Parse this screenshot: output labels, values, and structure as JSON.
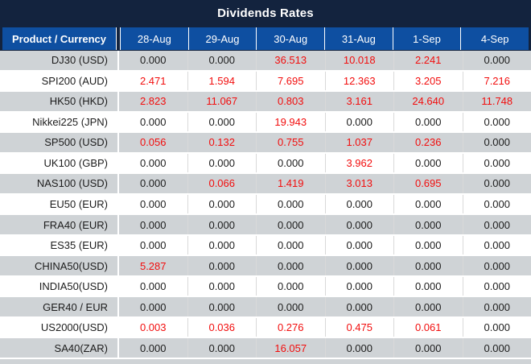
{
  "title": "Dividends Rates",
  "colors": {
    "title_bar_navy": "#13233e",
    "header_blue": "#0e4fa1",
    "row_gray": "#cfd3d6",
    "row_white": "#ffffff",
    "value_black": "#1c1c1c",
    "value_red": "#f20d0d"
  },
  "table": {
    "columns": [
      "Product / Currency",
      "28-Aug",
      "29-Aug",
      "30-Aug",
      "31-Aug",
      "1-Sep",
      "4-Sep"
    ],
    "rows": [
      {
        "product": "DJ30 (USD)",
        "values": [
          "0.000",
          "0.000",
          "36.513",
          "10.018",
          "2.241",
          "0.000"
        ],
        "red": [
          false,
          false,
          true,
          true,
          true,
          false
        ]
      },
      {
        "product": "SPI200 (AUD)",
        "values": [
          "2.471",
          "1.594",
          "7.695",
          "12.363",
          "3.205",
          "7.216"
        ],
        "red": [
          true,
          true,
          true,
          true,
          true,
          true
        ]
      },
      {
        "product": "HK50 (HKD)",
        "values": [
          "2.823",
          "11.067",
          "0.803",
          "3.161",
          "24.640",
          "11.748"
        ],
        "red": [
          true,
          true,
          true,
          true,
          true,
          true
        ]
      },
      {
        "product": "Nikkei225 (JPN)",
        "values": [
          "0.000",
          "0.000",
          "19.943",
          "0.000",
          "0.000",
          "0.000"
        ],
        "red": [
          false,
          false,
          true,
          false,
          false,
          false
        ]
      },
      {
        "product": "SP500 (USD)",
        "values": [
          "0.056",
          "0.132",
          "0.755",
          "1.037",
          "0.236",
          "0.000"
        ],
        "red": [
          true,
          true,
          true,
          true,
          true,
          false
        ]
      },
      {
        "product": "UK100 (GBP)",
        "values": [
          "0.000",
          "0.000",
          "0.000",
          "3.962",
          "0.000",
          "0.000"
        ],
        "red": [
          false,
          false,
          false,
          true,
          false,
          false
        ]
      },
      {
        "product": "NAS100 (USD)",
        "values": [
          "0.000",
          "0.066",
          "1.419",
          "3.013",
          "0.695",
          "0.000"
        ],
        "red": [
          false,
          true,
          true,
          true,
          true,
          false
        ]
      },
      {
        "product": "EU50 (EUR)",
        "values": [
          "0.000",
          "0.000",
          "0.000",
          "0.000",
          "0.000",
          "0.000"
        ],
        "red": [
          false,
          false,
          false,
          false,
          false,
          false
        ]
      },
      {
        "product": "FRA40 (EUR)",
        "values": [
          "0.000",
          "0.000",
          "0.000",
          "0.000",
          "0.000",
          "0.000"
        ],
        "red": [
          false,
          false,
          false,
          false,
          false,
          false
        ]
      },
      {
        "product": "ES35 (EUR)",
        "values": [
          "0.000",
          "0.000",
          "0.000",
          "0.000",
          "0.000",
          "0.000"
        ],
        "red": [
          false,
          false,
          false,
          false,
          false,
          false
        ]
      },
      {
        "product": "CHINA50(USD)",
        "values": [
          "5.287",
          "0.000",
          "0.000",
          "0.000",
          "0.000",
          "0.000"
        ],
        "red": [
          true,
          false,
          false,
          false,
          false,
          false
        ]
      },
      {
        "product": "INDIA50(USD)",
        "values": [
          "0.000",
          "0.000",
          "0.000",
          "0.000",
          "0.000",
          "0.000"
        ],
        "red": [
          false,
          false,
          false,
          false,
          false,
          false
        ]
      },
      {
        "product": "GER40 / EUR",
        "values": [
          "0.000",
          "0.000",
          "0.000",
          "0.000",
          "0.000",
          "0.000"
        ],
        "red": [
          false,
          false,
          false,
          false,
          false,
          false
        ]
      },
      {
        "product": "US2000(USD)",
        "values": [
          "0.003",
          "0.036",
          "0.276",
          "0.475",
          "0.061",
          "0.000"
        ],
        "red": [
          true,
          true,
          true,
          true,
          true,
          false
        ]
      },
      {
        "product": "SA40(ZAR)",
        "values": [
          "0.000",
          "0.000",
          "16.057",
          "0.000",
          "0.000",
          "0.000"
        ],
        "red": [
          false,
          false,
          true,
          false,
          false,
          false
        ]
      }
    ]
  }
}
